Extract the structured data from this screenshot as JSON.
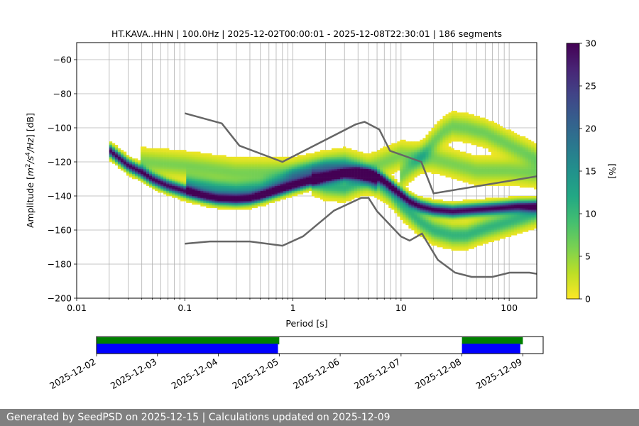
{
  "chart_data": [
    {
      "type": "heatmap",
      "title": "HT.KAVA..HHN | 100.0Hz | 2025-12-02T00:00:01 - 2025-12-08T22:30:01 | 186 segments",
      "xlabel": "Period [s]",
      "ylabel": "Amplitude [m²/s⁴/Hz] [dB]",
      "ylabel_parts": [
        "Amplitude [",
        "m",
        "2",
        "/",
        "s",
        "4",
        "/",
        "Hz",
        "] [dB]"
      ],
      "x_scale": "log",
      "xlim": [
        0.01,
        180
      ],
      "ylim": [
        -200,
        -50
      ],
      "grid": true,
      "x_ticks": [
        {
          "value": 0.01,
          "label": "0.01"
        },
        {
          "value": 0.1,
          "label": "0.1"
        },
        {
          "value": 1,
          "label": "1"
        },
        {
          "value": 10,
          "label": "10"
        },
        {
          "value": 100,
          "label": "100"
        }
      ],
      "y_ticks": [
        {
          "value": -60,
          "label": "−60"
        },
        {
          "value": -80,
          "label": "−80"
        },
        {
          "value": -100,
          "label": "−100"
        },
        {
          "value": -120,
          "label": "−120"
        },
        {
          "value": -140,
          "label": "−140"
        },
        {
          "value": -160,
          "label": "−160"
        },
        {
          "value": -180,
          "label": "−180"
        },
        {
          "value": -200,
          "label": "−200"
        }
      ],
      "psd_modes": [
        {
          "weight": 1.0,
          "points": [
            [
              0.02,
              -113
            ],
            [
              0.025,
              -118
            ],
            [
              0.03,
              -122
            ],
            [
              0.04,
              -126
            ],
            [
              0.05,
              -130
            ],
            [
              0.07,
              -134
            ],
            [
              0.1,
              -137
            ],
            [
              0.15,
              -140
            ],
            [
              0.2,
              -141.5
            ],
            [
              0.3,
              -142
            ],
            [
              0.4,
              -141.5
            ],
            [
              0.5,
              -140
            ],
            [
              0.7,
              -137
            ],
            [
              1.0,
              -134
            ],
            [
              1.5,
              -131
            ],
            [
              2.0,
              -129
            ],
            [
              3.0,
              -127
            ],
            [
              4.0,
              -126.5
            ],
            [
              5.0,
              -127
            ],
            [
              6.0,
              -128.5
            ],
            [
              7.0,
              -131
            ],
            [
              8.0,
              -134
            ],
            [
              10.0,
              -139
            ],
            [
              12.0,
              -143
            ],
            [
              15.0,
              -146
            ],
            [
              20.0,
              -148
            ],
            [
              30.0,
              -149
            ],
            [
              50.0,
              -148
            ],
            [
              80.0,
              -147
            ],
            [
              120.0,
              -146
            ],
            [
              180.0,
              -146
            ]
          ]
        },
        {
          "weight": 0.45,
          "points": [
            [
              0.1,
              -133
            ],
            [
              0.2,
              -136
            ],
            [
              0.3,
              -137
            ],
            [
              0.5,
              -136
            ],
            [
              0.8,
              -132
            ],
            [
              1.0,
              -129
            ],
            [
              1.5,
              -126
            ],
            [
              2.0,
              -124
            ],
            [
              3.0,
              -124
            ],
            [
              4.0,
              -126
            ],
            [
              5.0,
              -129
            ],
            [
              6.0,
              -131
            ]
          ]
        },
        {
          "weight": 0.35,
          "points": [
            [
              1.5,
              -131
            ],
            [
              2.0,
              -134
            ],
            [
              3.0,
              -135
            ],
            [
              4.0,
              -132
            ],
            [
              5.0,
              -130
            ],
            [
              6.0,
              -132
            ],
            [
              8.0,
              -138
            ],
            [
              10.0,
              -145
            ],
            [
              15.0,
              -155
            ],
            [
              20.0,
              -160
            ],
            [
              30.0,
              -163
            ],
            [
              40.0,
              -163
            ],
            [
              60.0,
              -159
            ],
            [
              100.0,
              -155
            ],
            [
              180.0,
              -150
            ]
          ]
        },
        {
          "weight": 0.22,
          "points": [
            [
              10.0,
              -128
            ],
            [
              15.0,
              -118
            ],
            [
              20.0,
              -108
            ],
            [
              25.0,
              -102
            ],
            [
              30.0,
              -99
            ],
            [
              40.0,
              -100
            ],
            [
              60.0,
              -103
            ],
            [
              100.0,
              -110
            ],
            [
              180.0,
              -118
            ]
          ]
        },
        {
          "weight": 0.2,
          "points": [
            [
              0.04,
              -120
            ],
            [
              0.1,
              -122
            ],
            [
              0.3,
              -126
            ],
            [
              1.0,
              -126
            ],
            [
              2.0,
              -122
            ],
            [
              3.0,
              -120
            ],
            [
              5.0,
              -124
            ],
            [
              10.0,
              -116
            ],
            [
              20.0,
              -118
            ],
            [
              50.0,
              -125
            ],
            [
              100.0,
              -125
            ],
            [
              180.0,
              -127
            ]
          ]
        }
      ],
      "nlnm": [
        [
          0.1,
          -168
        ],
        [
          0.17,
          -166.7
        ],
        [
          0.4,
          -166.7
        ],
        [
          0.8,
          -169.2
        ],
        [
          1.24,
          -163.7
        ],
        [
          2.4,
          -148.6
        ],
        [
          4.3,
          -141.1
        ],
        [
          5.0,
          -141.1
        ],
        [
          6.0,
          -149
        ],
        [
          10.0,
          -163.8
        ],
        [
          12.0,
          -166.2
        ],
        [
          15.6,
          -162.1
        ],
        [
          21.9,
          -177.5
        ],
        [
          31.6,
          -185
        ],
        [
          45.0,
          -187.5
        ],
        [
          70.0,
          -187.5
        ],
        [
          101.0,
          -185
        ],
        [
          154.0,
          -185
        ],
        [
          180.0,
          -185.7
        ]
      ],
      "nhnm": [
        [
          0.1,
          -91.5
        ],
        [
          0.22,
          -97.4
        ],
        [
          0.32,
          -110.5
        ],
        [
          0.8,
          -120
        ],
        [
          3.8,
          -98
        ],
        [
          4.6,
          -96.5
        ],
        [
          6.3,
          -101
        ],
        [
          7.9,
          -113.5
        ],
        [
          15.4,
          -120
        ],
        [
          20.0,
          -138.5
        ],
        [
          180.0,
          -128.5
        ]
      ],
      "colorbar": {
        "label": "[%]",
        "range": [
          0,
          30
        ],
        "ticks": [
          {
            "value": 0,
            "label": "0"
          },
          {
            "value": 5,
            "label": "5"
          },
          {
            "value": 10,
            "label": "10"
          },
          {
            "value": 15,
            "label": "15"
          },
          {
            "value": 20,
            "label": "20"
          },
          {
            "value": 25,
            "label": "25"
          },
          {
            "value": 30,
            "label": "30"
          }
        ],
        "colormap": "viridis_r"
      },
      "colors": {
        "noise_model": "#666666",
        "grid": "#b0b0b0"
      }
    },
    {
      "type": "timeline",
      "range": [
        "2025-12-02",
        "2025-12-09T08:00"
      ],
      "tick_labels": [
        "2025-12-02",
        "2025-12-03",
        "2025-12-04",
        "2025-12-05",
        "2025-12-06",
        "2025-12-07",
        "2025-12-08",
        "2025-12-09"
      ],
      "tick_dates": [
        "2025-12-02",
        "2025-12-03",
        "2025-12-04",
        "2025-12-05",
        "2025-12-06",
        "2025-12-07",
        "2025-12-08",
        "2025-12-09"
      ],
      "data_available": [
        [
          "2025-12-02T00:00",
          "2025-12-05T00:00"
        ],
        [
          "2025-12-08T00:00",
          "2025-12-09T00:00"
        ]
      ],
      "data_used": [
        [
          "2025-12-02T00:00",
          "2025-12-04T23:30"
        ],
        [
          "2025-12-08T00:00",
          "2025-12-08T23:00"
        ]
      ],
      "colors": {
        "available": "#008000",
        "used": "#0000ff"
      }
    }
  ],
  "footer": {
    "text": "Generated by SeedPSD on 2025-12-15 | Calculations updated on 2025-12-09"
  }
}
